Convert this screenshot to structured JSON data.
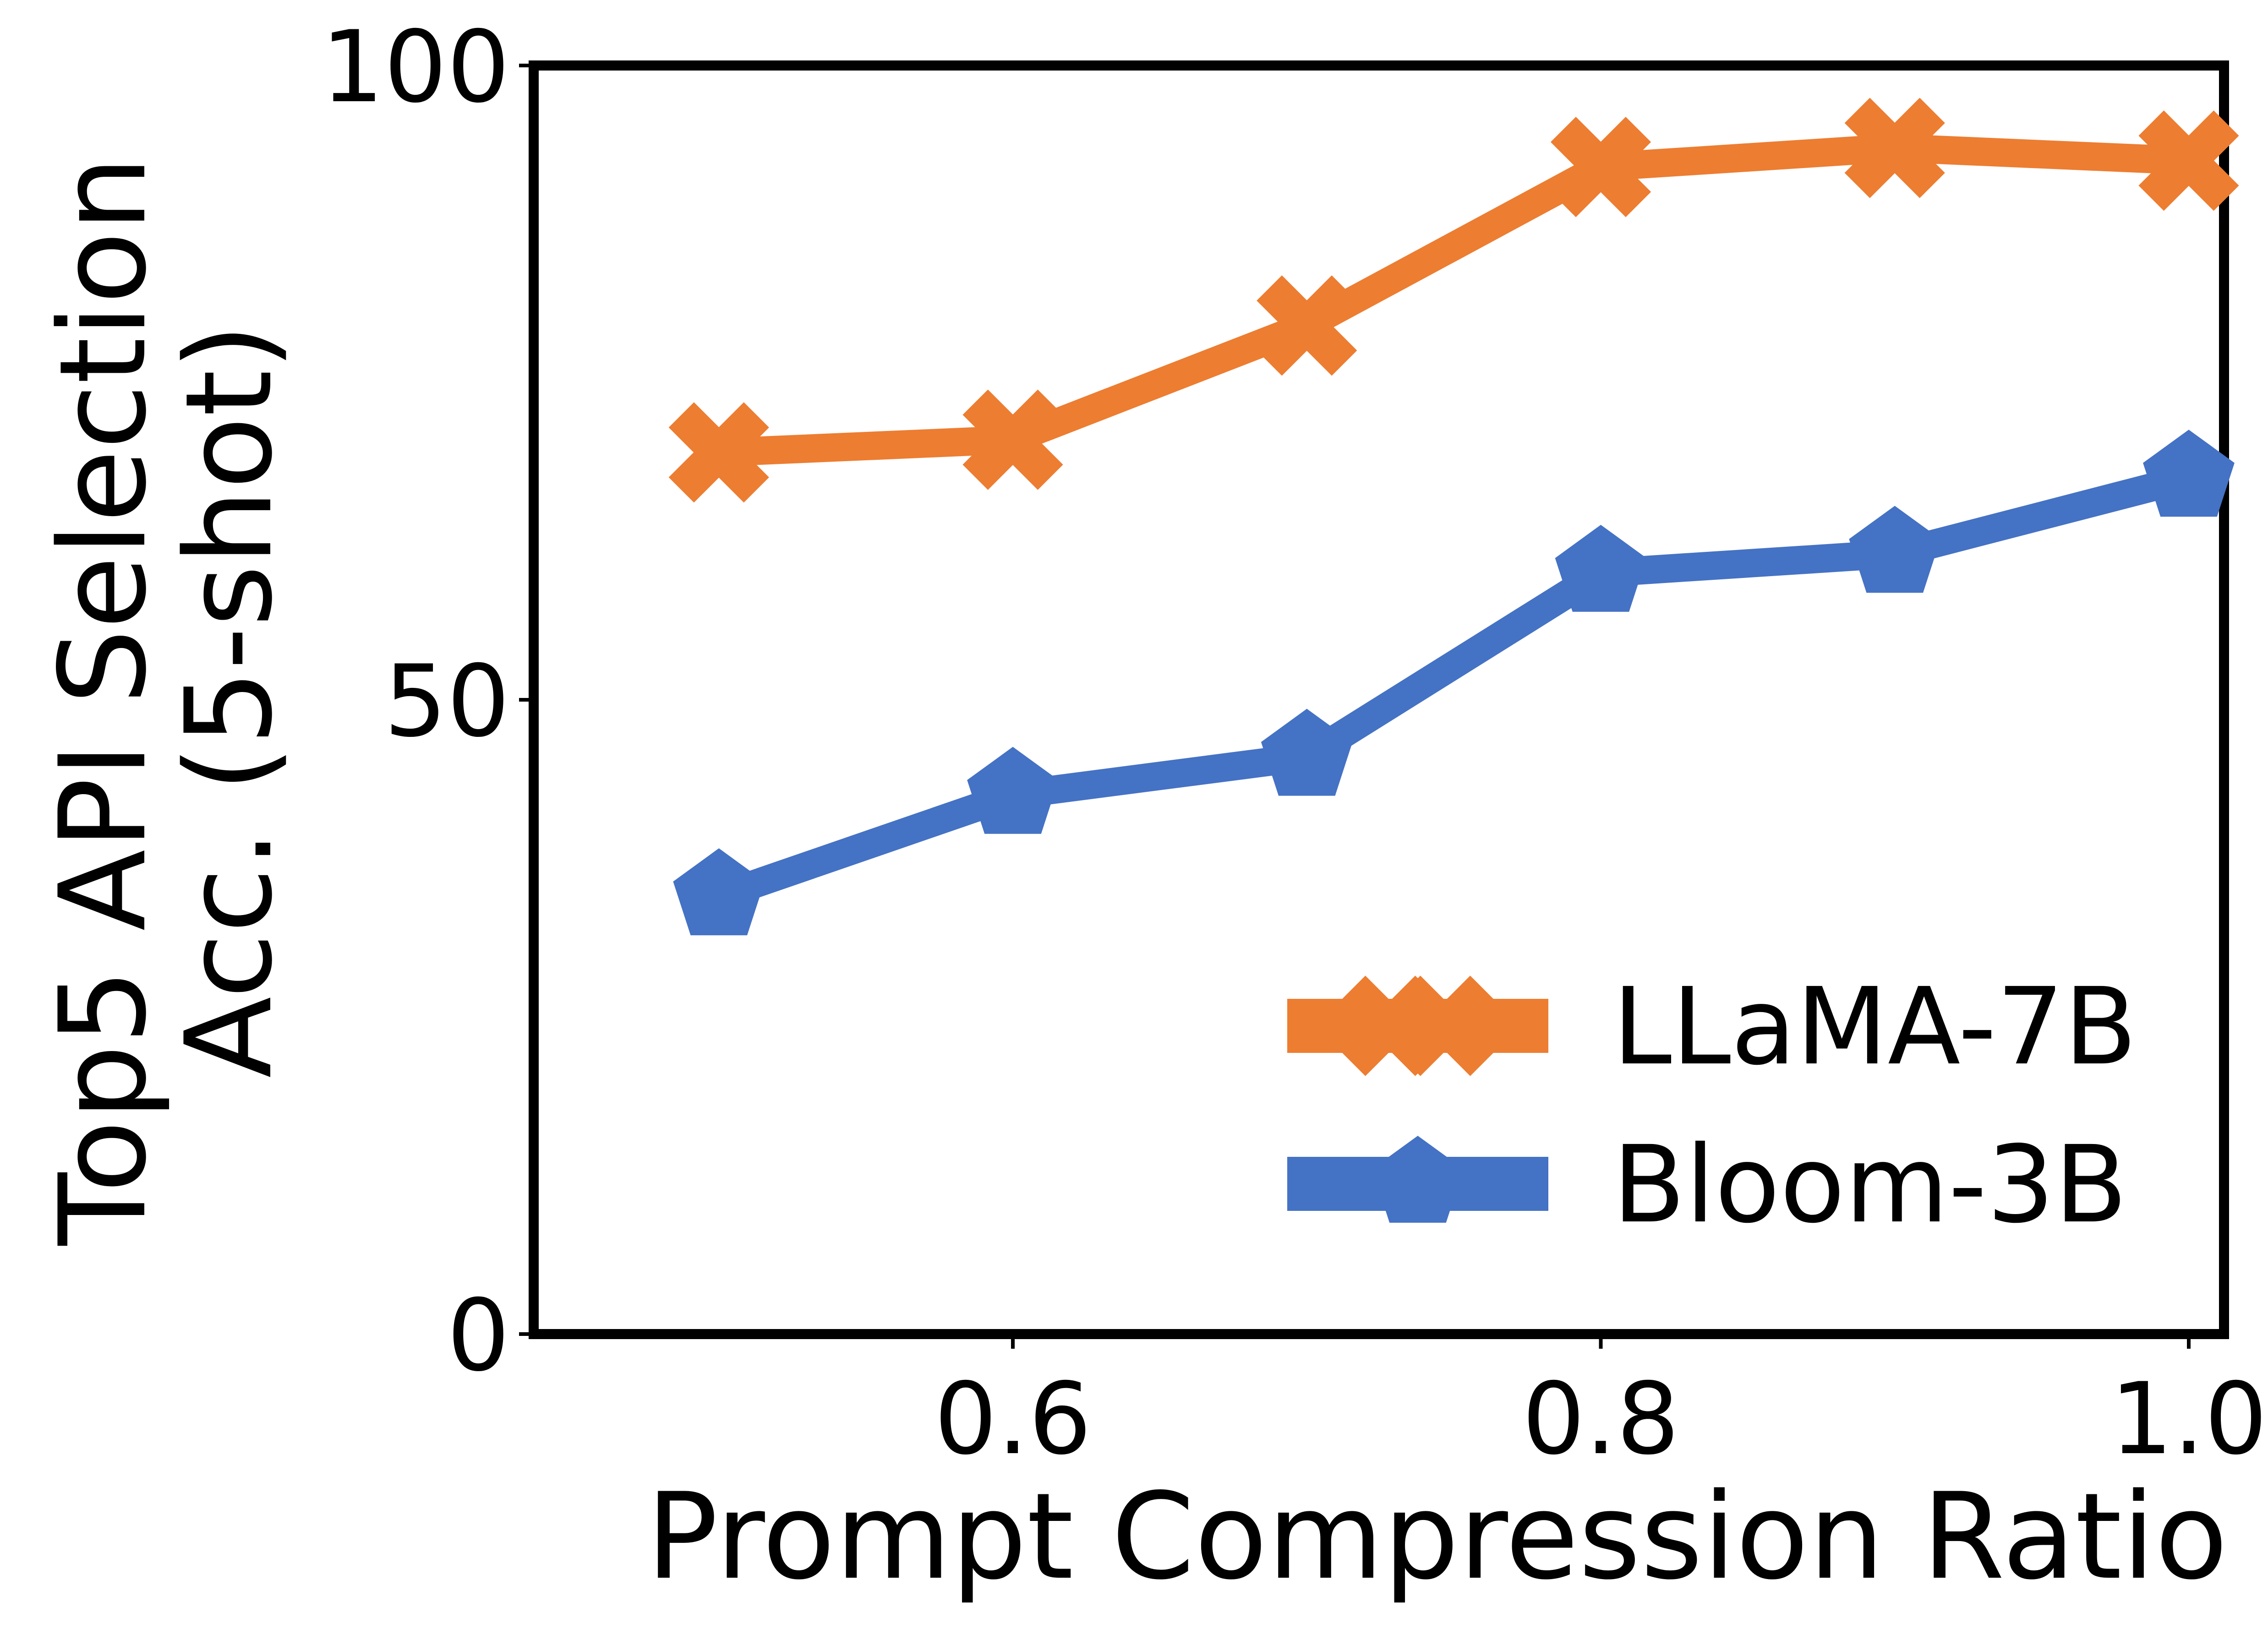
{
  "chart_data": {
    "type": "line",
    "x": [
      0.5,
      0.6,
      0.7,
      0.8,
      0.9,
      1.0
    ],
    "series": [
      {
        "name": "LLaMA-7B",
        "values": [
          69.5,
          70.5,
          79.5,
          92.0,
          93.5,
          92.5
        ],
        "color": "#ed7d31",
        "marker": "x"
      },
      {
        "name": "Bloom-3B",
        "values": [
          34.5,
          42.5,
          45.5,
          60.0,
          61.5,
          67.5
        ],
        "color": "#4472c4",
        "marker": "pentagon"
      }
    ],
    "xlabel": "Prompt Compression Ratio",
    "ylabel_line1": "Top5 API Selection",
    "ylabel_line2": "Acc. (5-shot)",
    "xlim": [
      0.437,
      1.012
    ],
    "ylim": [
      0,
      100
    ],
    "xticks": [
      "0.6",
      "0.8",
      "1.0"
    ],
    "xtick_values": [
      0.6,
      0.8,
      1.0
    ],
    "yticks": [
      "0",
      "50",
      "100"
    ],
    "ytick_values": [
      0,
      50,
      100
    ],
    "grid": false,
    "legend": "lower-right"
  }
}
